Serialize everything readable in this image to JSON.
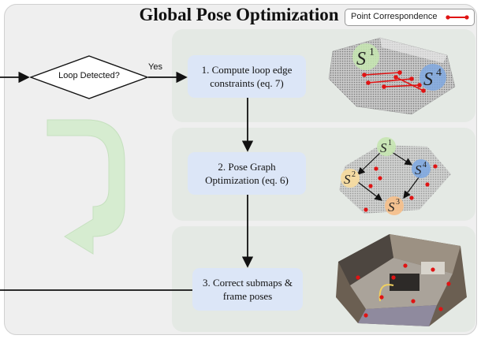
{
  "title": "Global Pose Optimization",
  "legend": {
    "label": "Point Correspondence",
    "color": "#e01414"
  },
  "decision": {
    "label": "Loop Detected?",
    "yes_label": "Yes"
  },
  "steps": [
    {
      "line1": "1. Compute loop edge",
      "line2": "constraints (eq. 7)"
    },
    {
      "line1": "2. Pose Graph",
      "line2": "Optimization (eq. 6)"
    },
    {
      "line1": "3. Correct submaps &",
      "line2": "frame poses"
    }
  ],
  "submaps": {
    "s1": "S",
    "s2": "S",
    "s3": "S",
    "s4": "S",
    "sup1": "1",
    "sup2": "2",
    "sup3": "3",
    "sup4": "4"
  },
  "colors": {
    "panel": "#e4e9e4",
    "step_box": "#dce6f7",
    "green_arrow": "#d5ecd0",
    "submap_green": "#c5e6b0",
    "submap_blue": "#7fa8e0",
    "submap_yellow": "#f6dba0",
    "submap_orange": "#f4c08c"
  }
}
